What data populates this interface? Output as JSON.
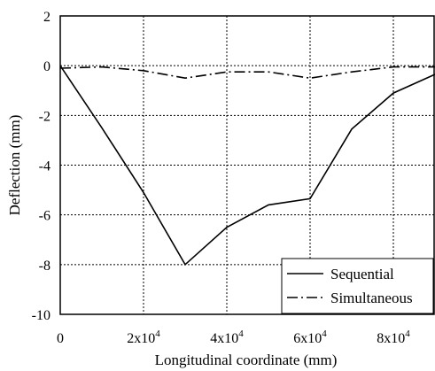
{
  "chart_data": {
    "type": "line",
    "xlabel": "Longitudinal coordinate  (mm)",
    "ylabel": "Deflection  (mm)",
    "xlim": [
      0,
      90000
    ],
    "ylim": [
      -10,
      2
    ],
    "grid": true,
    "legend_position": "bottom-right",
    "x_ticks": [
      {
        "value": 0,
        "label": "0"
      },
      {
        "value": 20000,
        "label": "2x10",
        "exp": "4"
      },
      {
        "value": 40000,
        "label": "4x10",
        "exp": "4"
      },
      {
        "value": 60000,
        "label": "6x10",
        "exp": "4"
      },
      {
        "value": 80000,
        "label": "8x10",
        "exp": "4"
      }
    ],
    "y_ticks": [
      {
        "value": 2,
        "label": "2"
      },
      {
        "value": 0,
        "label": "0"
      },
      {
        "value": -2,
        "label": "-2"
      },
      {
        "value": -4,
        "label": "-4"
      },
      {
        "value": -6,
        "label": "-6"
      },
      {
        "value": -8,
        "label": "-8"
      },
      {
        "value": -10,
        "label": "-10"
      }
    ],
    "series": [
      {
        "name": "Sequential",
        "dash": "solid",
        "x": [
          0,
          10000,
          20000,
          30000,
          40000,
          50000,
          60000,
          70000,
          80000,
          90000
        ],
        "y": [
          0,
          -2.5,
          -5.1,
          -8.0,
          -6.5,
          -5.6,
          -5.35,
          -2.55,
          -1.1,
          -0.35
        ]
      },
      {
        "name": "Simultaneous",
        "dash": "dashdot",
        "x": [
          0,
          10000,
          20000,
          30000,
          40000,
          50000,
          60000,
          70000,
          80000,
          90000
        ],
        "y": [
          -0.1,
          -0.05,
          -0.2,
          -0.5,
          -0.25,
          -0.25,
          -0.5,
          -0.25,
          -0.05,
          -0.05
        ]
      }
    ]
  }
}
